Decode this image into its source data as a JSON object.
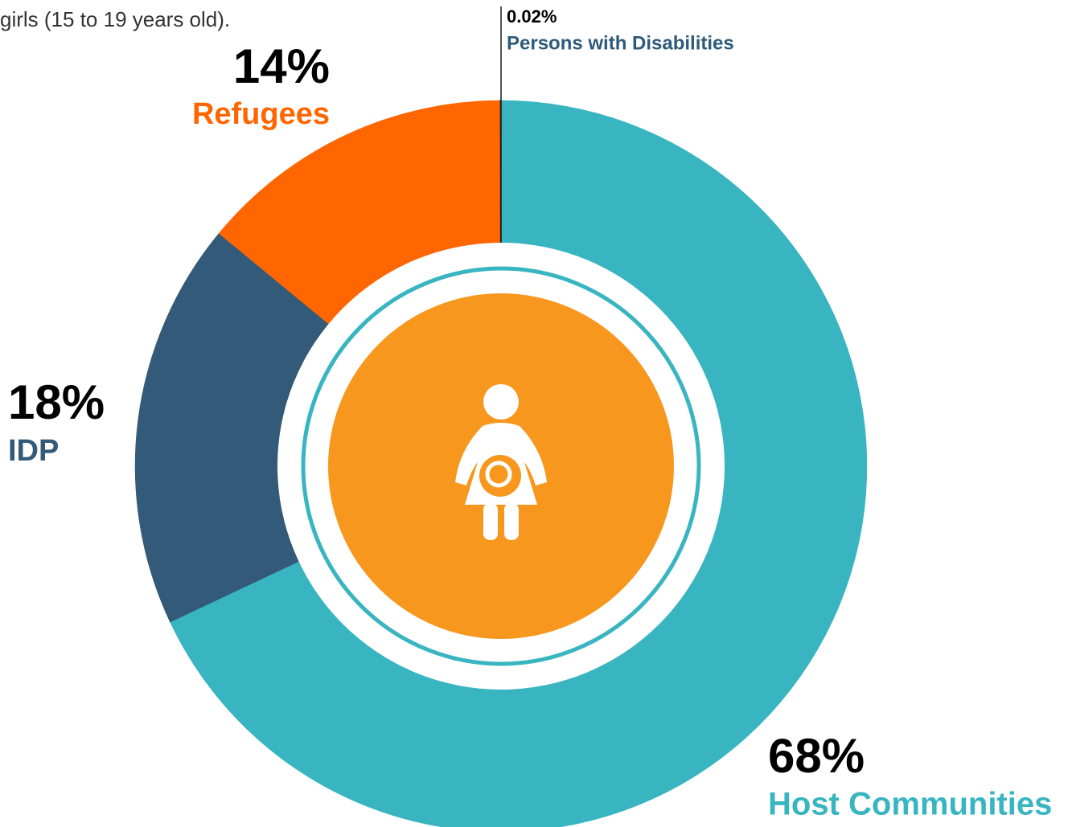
{
  "chart_data": {
    "type": "donut",
    "subtitle": "girls (15 to 19 years old).",
    "categories": [
      "Host Communities",
      "IDP",
      "Refugees",
      "Persons with Disabilities"
    ],
    "values": [
      68,
      18,
      14,
      0.02
    ],
    "value_labels": [
      "68%",
      "18%",
      "14%",
      "0.02%"
    ],
    "colors": [
      "#38b5c1",
      "#335a78",
      "#ff6600",
      "#1a1a1a"
    ]
  }
}
